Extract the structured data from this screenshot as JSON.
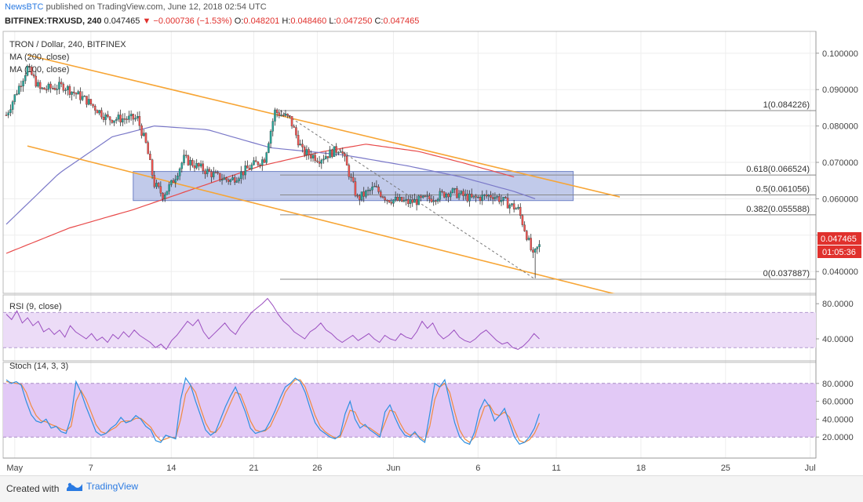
{
  "header": {
    "publisher": "NewsBTC",
    "published_text": "published on TradingView.com, June 12, 2018 02:54 UTC"
  },
  "quote": {
    "symbol": "BITFINEX:TRXUSD, 240",
    "last": "0.047465",
    "change": "▼ −0.000736 (−1.53%)",
    "open_label": "O:",
    "open": "0.048201",
    "high_label": "H:",
    "high": "0.048460",
    "low_label": "L:",
    "low": "0.047250",
    "close_label": "C:",
    "close": "0.047465"
  },
  "legend": {
    "title": "TRON / Dollar, 240, BITFINEX",
    "ma200": "MA (200, close)",
    "ma100": "MA (100, close)",
    "rsi": "RSI (9, close)",
    "stoch": "Stoch (14, 3, 3)"
  },
  "price_badge": {
    "value": "0.047465",
    "countdown": "01:05:36",
    "color": "#e0312d"
  },
  "footer": {
    "created_with": "Created with",
    "brand": "TradingView"
  },
  "colors": {
    "up": "#26a69a",
    "down": "#ef5350",
    "channel": "#f7a535",
    "ma200": "#e84a4a",
    "ma100": "#7a78c8",
    "zone": "#8e9fd8",
    "rsi": "#9b4fc0",
    "stoch_k": "#2d8fe0",
    "stoch_d": "#f08a40"
  },
  "chart_data": [
    {
      "type": "candlestick",
      "title": "TRON / Dollar, 240, BITFINEX",
      "x_ticks": [
        "May",
        "7",
        "14",
        "21",
        "26",
        "Jun",
        "6",
        "11",
        "18",
        "25",
        "Jul"
      ],
      "ylim": [
        0.034,
        0.106
      ],
      "y_ticks": [
        "0.100000",
        "0.090000",
        "0.080000",
        "0.070000",
        "0.060000",
        "0.050000",
        "0.040000"
      ],
      "series_points": {
        "close_path": [
          [
            0,
            0.083
          ],
          [
            10,
            0.096
          ],
          [
            16,
            0.09
          ],
          [
            27,
            0.091
          ],
          [
            38,
            0.087
          ],
          [
            48,
            0.082
          ],
          [
            62,
            0.082
          ],
          [
            66,
            0.075
          ],
          [
            70,
            0.064
          ],
          [
            74,
            0.061
          ],
          [
            78,
            0.064
          ],
          [
            84,
            0.071
          ],
          [
            90,
            0.069
          ],
          [
            100,
            0.066
          ],
          [
            106,
            0.065
          ],
          [
            116,
            0.069
          ],
          [
            122,
            0.071
          ],
          [
            127,
            0.084
          ],
          [
            134,
            0.082
          ],
          [
            140,
            0.073
          ],
          [
            148,
            0.071
          ],
          [
            158,
            0.074
          ],
          [
            166,
            0.06
          ],
          [
            174,
            0.063
          ],
          [
            180,
            0.06
          ],
          [
            190,
            0.059
          ],
          [
            200,
            0.06
          ],
          [
            210,
            0.062
          ],
          [
            220,
            0.06
          ],
          [
            230,
            0.061
          ],
          [
            236,
            0.059
          ],
          [
            242,
            0.057
          ],
          [
            246,
            0.05
          ],
          [
            249,
            0.044
          ],
          [
            252,
            0.0475
          ]
        ],
        "ma200": [
          [
            0,
            0.045
          ],
          [
            30,
            0.052
          ],
          [
            60,
            0.057
          ],
          [
            90,
            0.063
          ],
          [
            120,
            0.069
          ],
          [
            150,
            0.073
          ],
          [
            170,
            0.075
          ],
          [
            195,
            0.073
          ],
          [
            215,
            0.07
          ],
          [
            240,
            0.066
          ]
        ],
        "ma100": [
          [
            0,
            0.053
          ],
          [
            25,
            0.067
          ],
          [
            50,
            0.077
          ],
          [
            70,
            0.08
          ],
          [
            95,
            0.079
          ],
          [
            125,
            0.074
          ],
          [
            160,
            0.072
          ],
          [
            190,
            0.069
          ],
          [
            215,
            0.066
          ],
          [
            240,
            0.062
          ],
          [
            250,
            0.06
          ]
        ]
      },
      "channel_upper": [
        [
          10,
          0.0995
        ],
        [
          290,
          0.0605
        ]
      ],
      "channel_lower": [
        [
          10,
          0.0745
        ],
        [
          290,
          0.0335
        ]
      ],
      "zone": {
        "x": [
          60,
          268
        ],
        "y": [
          0.0595,
          0.0675
        ]
      },
      "fibonacci": [
        {
          "label": "1(0.084226)",
          "level": 0.084226
        },
        {
          "label": "0.618(0.066524)",
          "level": 0.066524
        },
        {
          "label": "0.5(0.061056)",
          "level": 0.061056
        },
        {
          "label": "0.382(0.055588)",
          "level": 0.055588
        },
        {
          "label": "0(0.037887)",
          "level": 0.037887
        }
      ]
    },
    {
      "type": "line",
      "title": "RSI (9, close)",
      "ylim": [
        15,
        90
      ],
      "y_ticks": [
        "80.0000",
        "40.0000"
      ],
      "band": [
        30,
        70
      ],
      "values": [
        68,
        62,
        72,
        58,
        64,
        55,
        60,
        48,
        52,
        45,
        50,
        42,
        55,
        48,
        44,
        40,
        46,
        38,
        42,
        36,
        45,
        40,
        48,
        42,
        50,
        44,
        40,
        36,
        30,
        34,
        28,
        38,
        44,
        52,
        60,
        55,
        62,
        48,
        40,
        46,
        52,
        58,
        50,
        45,
        55,
        62,
        70,
        75,
        80,
        86,
        78,
        68,
        60,
        55,
        48,
        44,
        40,
        48,
        52,
        58,
        50,
        46,
        40,
        36,
        40,
        44,
        38,
        42,
        46,
        40,
        36,
        44,
        40,
        38,
        46,
        42,
        40,
        48,
        60,
        52,
        58,
        46,
        40,
        44,
        50,
        42,
        38,
        36,
        40,
        46,
        50,
        44,
        38,
        34,
        36,
        30,
        28,
        32,
        38,
        46,
        40
      ],
      "last": 42
    },
    {
      "type": "line",
      "title": "Stoch (14, 3, 3)",
      "ylim": [
        0,
        100
      ],
      "y_ticks": [
        "80.0000",
        "60.0000",
        "40.0000",
        "20.0000"
      ],
      "band": [
        20,
        80
      ],
      "series": [
        {
          "name": "%K",
          "values": [
            84,
            80,
            82,
            78,
            60,
            45,
            38,
            36,
            40,
            30,
            32,
            26,
            24,
            42,
            82,
            70,
            54,
            40,
            26,
            22,
            24,
            30,
            34,
            42,
            36,
            38,
            44,
            40,
            32,
            28,
            16,
            14,
            22,
            20,
            18,
            62,
            86,
            78,
            60,
            44,
            28,
            22,
            26,
            40,
            54,
            66,
            76,
            62,
            48,
            30,
            24,
            26,
            28,
            38,
            50,
            64,
            76,
            80,
            86,
            82,
            70,
            52,
            36,
            28,
            24,
            20,
            18,
            22,
            46,
            60,
            40,
            30,
            34,
            28,
            24,
            20,
            48,
            56,
            42,
            30,
            22,
            20,
            26,
            18,
            14,
            46,
            80,
            76,
            84,
            60,
            36,
            20,
            14,
            12,
            26,
            50,
            62,
            54,
            38,
            44,
            52,
            36,
            20,
            12,
            14,
            20,
            30,
            46
          ]
        },
        {
          "name": "%D",
          "values": [
            82,
            81,
            80,
            79,
            70,
            55,
            44,
            38,
            37,
            34,
            32,
            29,
            27,
            32,
            60,
            72,
            62,
            48,
            34,
            26,
            24,
            28,
            31,
            37,
            38,
            38,
            41,
            41,
            36,
            31,
            22,
            16,
            18,
            20,
            19,
            40,
            68,
            78,
            70,
            52,
            36,
            26,
            25,
            32,
            45,
            58,
            70,
            68,
            54,
            38,
            28,
            26,
            27,
            32,
            44,
            56,
            70,
            78,
            84,
            84,
            76,
            60,
            44,
            32,
            26,
            22,
            19,
            20,
            34,
            50,
            48,
            36,
            32,
            30,
            26,
            22,
            36,
            50,
            48,
            36,
            26,
            22,
            24,
            20,
            16,
            32,
            62,
            76,
            80,
            70,
            48,
            28,
            18,
            14,
            20,
            38,
            54,
            56,
            46,
            44,
            48,
            42,
            28,
            16,
            14,
            17,
            24,
            36
          ]
        }
      ]
    }
  ]
}
